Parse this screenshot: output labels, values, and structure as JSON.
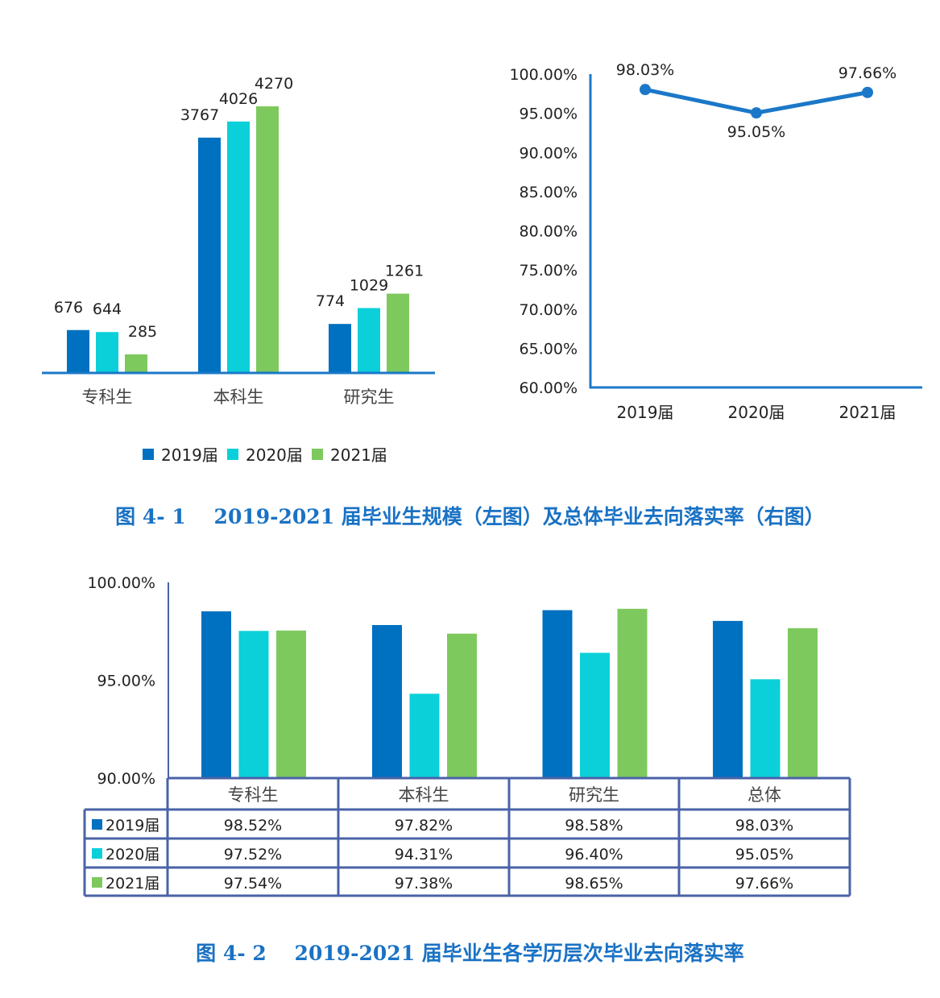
{
  "colors": {
    "s2019": "#0070C0",
    "s2020": "#0BD0D9",
    "s2021": "#7DC95E",
    "axis": "#1B78C8",
    "table_border": "#4A63A8",
    "caption": "#1A72C4"
  },
  "chart_data": [
    {
      "type": "bar",
      "categories": [
        "专科生",
        "本科生",
        "研究生"
      ],
      "series": [
        {
          "name": "2019届",
          "values": [
            676,
            3767,
            774
          ]
        },
        {
          "name": "2020届",
          "values": [
            644,
            4026,
            1029
          ]
        },
        {
          "name": "2021届",
          "values": [
            285,
            4270,
            1261
          ]
        }
      ],
      "data_labels": true,
      "legend": "bottom",
      "ylim": [
        0,
        4270
      ]
    },
    {
      "type": "line",
      "categories": [
        "2019届",
        "2020届",
        "2021届"
      ],
      "values": [
        98.03,
        95.05,
        97.66
      ],
      "value_labels": [
        "98.03%",
        "95.05%",
        "97.66%"
      ],
      "ylim": [
        60,
        100
      ],
      "yticks": [
        "60.00%",
        "65.00%",
        "70.00%",
        "75.00%",
        "80.00%",
        "85.00%",
        "90.00%",
        "95.00%",
        "100.00%"
      ],
      "color": "#1B78C8"
    },
    {
      "type": "bar",
      "categories": [
        "专科生",
        "本科生",
        "研究生",
        "总体"
      ],
      "series": [
        {
          "name": "2019届",
          "values": [
            98.52,
            97.82,
            98.58,
            98.03
          ],
          "labels": [
            "98.52%",
            "97.82%",
            "98.58%",
            "98.03%"
          ]
        },
        {
          "name": "2020届",
          "values": [
            97.52,
            94.31,
            96.4,
            95.05
          ],
          "labels": [
            "97.52%",
            "94.31%",
            "96.40%",
            "95.05%"
          ]
        },
        {
          "name": "2021届",
          "values": [
            97.54,
            97.38,
            98.65,
            97.66
          ],
          "labels": [
            "97.54%",
            "97.38%",
            "98.65%",
            "97.66%"
          ]
        }
      ],
      "ylim": [
        90,
        100
      ],
      "yticks": [
        "90.00%",
        "95.00%",
        "100.00%"
      ],
      "data_table": true
    }
  ],
  "captions": {
    "fig1": "图 4- 1    2019-2021 届毕业生规模（左图）及总体毕业去向落实率（右图）",
    "fig2": "图 4- 2    2019-2021 届毕业生各学历层次毕业去向落实率"
  }
}
